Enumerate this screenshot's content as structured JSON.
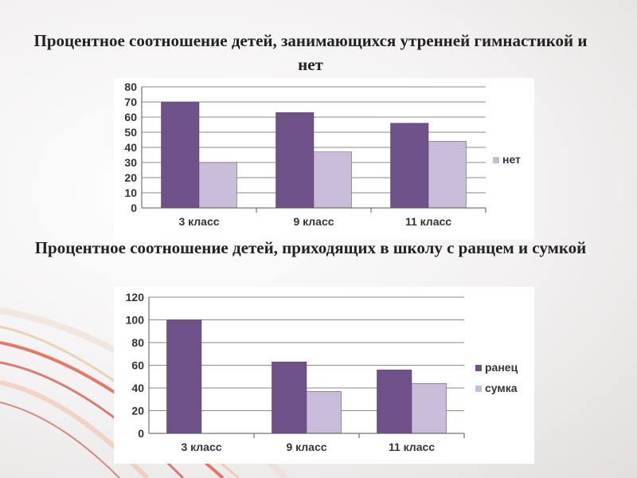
{
  "colors": {
    "series1": "#6e5188",
    "series2": "#c9bcd8",
    "grid": "#8a8a8a"
  },
  "titles": {
    "chart1": "Процентное соотношение детей, занимающихся утренней гимнастикой и нет",
    "chart2": "Процентное соотношение детей, приходящих в школу с ранцем и сумкой"
  },
  "chart_data": [
    {
      "type": "bar",
      "title": "Процентное соотношение детей, занимающихся утренней гимнастикой и нет",
      "categories": [
        "3 класс",
        "9 класс",
        "11 класс"
      ],
      "series": [
        {
          "values": [
            70,
            63,
            56
          ]
        },
        {
          "name": "нет",
          "values": [
            30,
            37,
            44
          ]
        }
      ],
      "ylim": [
        0,
        80
      ],
      "yticks": [
        0,
        10,
        20,
        30,
        40,
        50,
        60,
        70,
        80
      ],
      "grid": true,
      "legend": "right"
    },
    {
      "type": "bar",
      "title": "Процентное соотношение детей, приходящих в школу с ранцем и сумкой",
      "categories": [
        "3 класс",
        "9 класс",
        "11 класс"
      ],
      "series": [
        {
          "name": "ранец",
          "values": [
            100,
            63,
            56
          ]
        },
        {
          "name": "сумка",
          "values": [
            0,
            37,
            44
          ]
        }
      ],
      "ylim": [
        0,
        120
      ],
      "yticks": [
        0,
        20,
        40,
        60,
        80,
        100,
        120
      ],
      "grid": true,
      "legend": "right"
    }
  ]
}
